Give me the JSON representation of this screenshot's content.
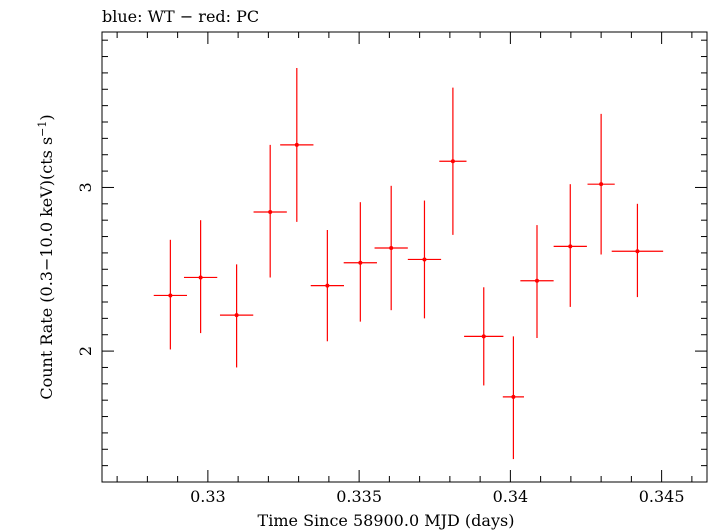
{
  "chart_data": {
    "type": "scatter",
    "title": "blue: WT − red: PC",
    "xlabel": "Time Since 58900.0 MJD (days)",
    "ylabel": "Count Rate (0.3−10.0 keV)(cts s",
    "ylabel_sup": "−1",
    "ylabel_end": ")",
    "xlim": [
      0.3265,
      0.3465
    ],
    "ylim": [
      1.2,
      3.95
    ],
    "grid": false,
    "x_ticks": [
      {
        "value": 0.33,
        "label": "0.33"
      },
      {
        "value": 0.335,
        "label": "0.335"
      },
      {
        "value": 0.34,
        "label": "0.34"
      },
      {
        "value": 0.345,
        "label": "0.345"
      }
    ],
    "y_ticks": [
      {
        "value": 2,
        "label": "2"
      },
      {
        "value": 3,
        "label": "3"
      }
    ],
    "series": [
      {
        "color": "#ff0000",
        "points": [
          {
            "x": 0.32876,
            "xerr": 0.00055,
            "y": 2.34,
            "ylo": 2.01,
            "yhi": 2.68
          },
          {
            "x": 0.32976,
            "xerr": 0.00055,
            "y": 2.45,
            "ylo": 2.11,
            "yhi": 2.8
          },
          {
            "x": 0.33095,
            "xerr": 0.00055,
            "y": 2.22,
            "ylo": 1.9,
            "yhi": 2.53
          },
          {
            "x": 0.33206,
            "xerr": 0.00055,
            "y": 2.85,
            "ylo": 2.45,
            "yhi": 3.26
          },
          {
            "x": 0.33294,
            "xerr": 0.00055,
            "y": 3.26,
            "ylo": 2.79,
            "yhi": 3.73
          },
          {
            "x": 0.33395,
            "xerr": 0.00055,
            "y": 2.4,
            "ylo": 2.06,
            "yhi": 2.74
          },
          {
            "x": 0.33504,
            "xerr": 0.00055,
            "y": 2.54,
            "ylo": 2.18,
            "yhi": 2.91
          },
          {
            "x": 0.33606,
            "xerr": 0.00055,
            "y": 2.63,
            "ylo": 2.25,
            "yhi": 3.01
          },
          {
            "x": 0.33716,
            "xerr": 0.00055,
            "y": 2.56,
            "ylo": 2.2,
            "yhi": 2.92
          },
          {
            "x": 0.3381,
            "xerr": 0.00045,
            "y": 3.16,
            "ylo": 2.71,
            "yhi": 3.61
          },
          {
            "x": 0.33912,
            "xerr": 0.00065,
            "y": 2.09,
            "ylo": 1.79,
            "yhi": 2.39
          },
          {
            "x": 0.3401,
            "xerr": 0.00035,
            "y": 1.72,
            "ylo": 1.34,
            "yhi": 2.09
          },
          {
            "x": 0.34088,
            "xerr": 0.00055,
            "y": 2.43,
            "ylo": 2.08,
            "yhi": 2.77
          },
          {
            "x": 0.34198,
            "xerr": 0.00055,
            "y": 2.64,
            "ylo": 2.27,
            "yhi": 3.02
          },
          {
            "x": 0.343,
            "xerr": 0.00045,
            "y": 3.02,
            "ylo": 2.59,
            "yhi": 3.45
          },
          {
            "x": 0.3442,
            "xerr": 0.00085,
            "y": 2.61,
            "ylo": 2.33,
            "yhi": 2.9
          }
        ]
      }
    ]
  }
}
